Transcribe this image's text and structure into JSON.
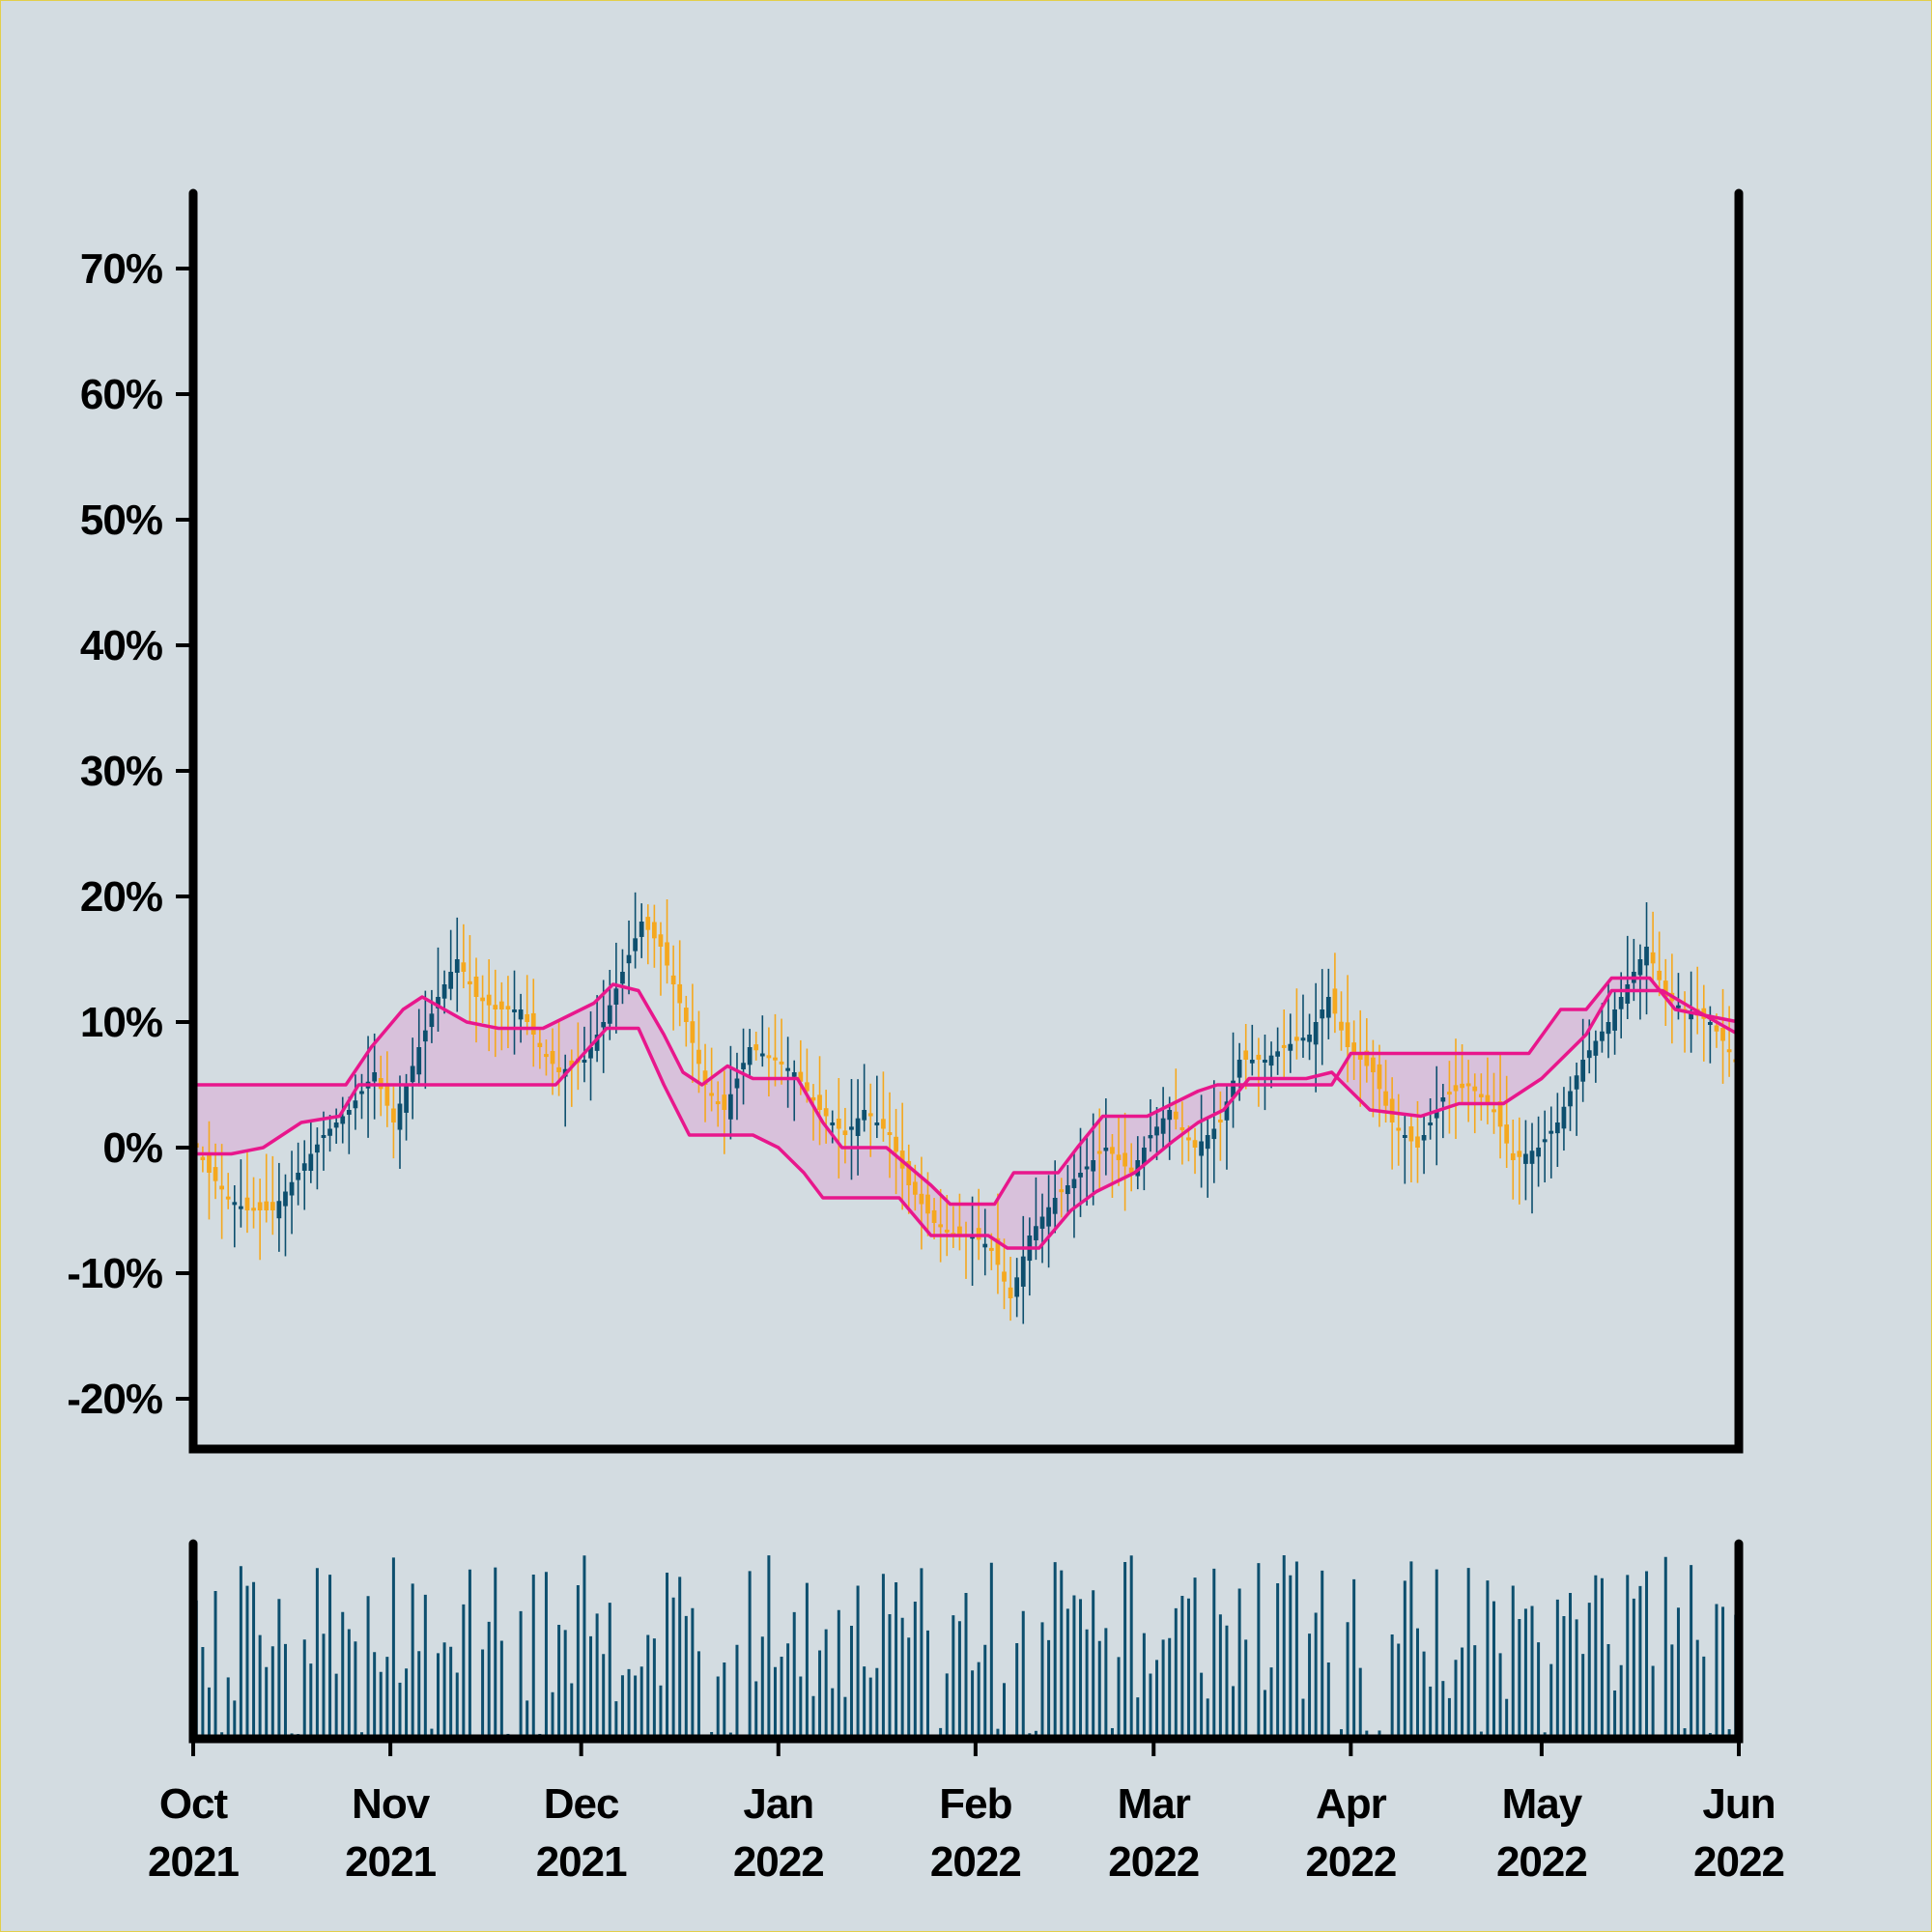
{
  "chart_data": {
    "type": "candlestick",
    "title": "",
    "xlabel": "",
    "ylabel": "",
    "x_range": [
      "2021-10-01",
      "2022-06-01"
    ],
    "y_range_percent": [
      -24,
      76
    ],
    "y_ticks": [
      "70%",
      "60%",
      "50%",
      "40%",
      "30%",
      "20%",
      "10%",
      "0%",
      "-10%",
      "-20%"
    ],
    "y_tick_values": [
      70,
      60,
      50,
      40,
      30,
      20,
      10,
      0,
      -10,
      -20
    ],
    "x_ticks": [
      {
        "date": "2021-10-01",
        "month": "Oct",
        "year": "2021"
      },
      {
        "date": "2021-11-01",
        "month": "Nov",
        "year": "2021"
      },
      {
        "date": "2021-12-01",
        "month": "Dec",
        "year": "2021"
      },
      {
        "date": "2022-01-01",
        "month": "Jan",
        "year": "2022"
      },
      {
        "date": "2022-02-01",
        "month": "Feb",
        "year": "2022"
      },
      {
        "date": "2022-03-01",
        "month": "Mar",
        "year": "2022"
      },
      {
        "date": "2022-04-01",
        "month": "Apr",
        "year": "2022"
      },
      {
        "date": "2022-05-01",
        "month": "May",
        "year": "2022"
      },
      {
        "date": "2022-06-01",
        "month": "Jun",
        "year": "2022"
      }
    ],
    "close_path": [
      [
        "2021-10-01",
        1
      ],
      [
        "2021-10-04",
        -2
      ],
      [
        "2021-10-07",
        -4
      ],
      [
        "2021-10-10",
        -5
      ],
      [
        "2021-10-14",
        -5
      ],
      [
        "2021-10-18",
        -2
      ],
      [
        "2021-10-22",
        1
      ],
      [
        "2021-10-26",
        3
      ],
      [
        "2021-10-30",
        6
      ],
      [
        "2021-11-02",
        2
      ],
      [
        "2021-11-06",
        8
      ],
      [
        "2021-11-09",
        12
      ],
      [
        "2021-11-12",
        15
      ],
      [
        "2021-11-15",
        12
      ],
      [
        "2021-11-18",
        11
      ],
      [
        "2021-11-22",
        11
      ],
      [
        "2021-11-25",
        8
      ],
      [
        "2021-11-28",
        6
      ],
      [
        "2021-12-02",
        7
      ],
      [
        "2021-12-05",
        10
      ],
      [
        "2021-12-08",
        14
      ],
      [
        "2021-12-11",
        18
      ],
      [
        "2021-12-14",
        16
      ],
      [
        "2021-12-18",
        10
      ],
      [
        "2021-12-21",
        5
      ],
      [
        "2021-12-24",
        3
      ],
      [
        "2021-12-28",
        8
      ],
      [
        "2022-01-01",
        7
      ],
      [
        "2022-01-04",
        6
      ],
      [
        "2022-01-08",
        3
      ],
      [
        "2022-01-12",
        1
      ],
      [
        "2022-01-15",
        3
      ],
      [
        "2022-01-19",
        1
      ],
      [
        "2022-01-22",
        -3
      ],
      [
        "2022-01-26",
        -6
      ],
      [
        "2022-01-29",
        -7
      ],
      [
        "2022-02-01",
        -7
      ],
      [
        "2022-02-04",
        -8
      ],
      [
        "2022-02-07",
        -12
      ],
      [
        "2022-02-10",
        -7
      ],
      [
        "2022-02-14",
        -4
      ],
      [
        "2022-02-18",
        -2
      ],
      [
        "2022-02-22",
        0
      ],
      [
        "2022-02-26",
        -2
      ],
      [
        "2022-03-01",
        1
      ],
      [
        "2022-03-04",
        3
      ],
      [
        "2022-03-08",
        0
      ],
      [
        "2022-03-12",
        2
      ],
      [
        "2022-03-15",
        7
      ],
      [
        "2022-03-19",
        7
      ],
      [
        "2022-03-22",
        8
      ],
      [
        "2022-03-26",
        9
      ],
      [
        "2022-03-29",
        12
      ],
      [
        "2022-04-01",
        8
      ],
      [
        "2022-04-05",
        6
      ],
      [
        "2022-04-08",
        2
      ],
      [
        "2022-04-12",
        0
      ],
      [
        "2022-04-16",
        4
      ],
      [
        "2022-04-20",
        5
      ],
      [
        "2022-04-24",
        3
      ],
      [
        "2022-04-27",
        -1
      ],
      [
        "2022-05-01",
        0
      ],
      [
        "2022-05-04",
        2
      ],
      [
        "2022-05-08",
        7
      ],
      [
        "2022-05-12",
        10
      ],
      [
        "2022-05-15",
        13
      ],
      [
        "2022-05-18",
        16
      ],
      [
        "2022-05-21",
        12
      ],
      [
        "2022-05-24",
        11
      ],
      [
        "2022-05-28",
        10
      ],
      [
        "2022-06-01",
        7
      ]
    ],
    "channel_upper": [
      [
        "2021-10-01",
        5
      ],
      [
        "2021-10-25",
        5
      ],
      [
        "2021-10-29",
        8
      ],
      [
        "2021-11-03",
        11
      ],
      [
        "2021-11-06",
        12
      ],
      [
        "2021-11-13",
        10
      ],
      [
        "2021-11-18",
        9.5
      ],
      [
        "2021-11-25",
        9.5
      ],
      [
        "2021-11-29",
        10.5
      ],
      [
        "2021-12-03",
        11.5
      ],
      [
        "2021-12-06",
        13
      ],
      [
        "2021-12-10",
        12.5
      ],
      [
        "2021-12-14",
        9
      ],
      [
        "2021-12-17",
        6
      ],
      [
        "2021-12-20",
        5
      ],
      [
        "2021-12-24",
        6.5
      ],
      [
        "2021-12-28",
        5.5
      ],
      [
        "2022-01-04",
        5.5
      ],
      [
        "2022-01-08",
        2
      ],
      [
        "2022-01-11",
        0
      ],
      [
        "2022-01-18",
        0
      ],
      [
        "2022-01-25",
        -3
      ],
      [
        "2022-01-28",
        -4.5
      ],
      [
        "2022-02-04",
        -4.5
      ],
      [
        "2022-02-07",
        -2
      ],
      [
        "2022-02-14",
        -2
      ],
      [
        "2022-02-17",
        0
      ],
      [
        "2022-02-21",
        2.5
      ],
      [
        "2022-02-28",
        2.5
      ],
      [
        "2022-03-04",
        3.5
      ],
      [
        "2022-03-08",
        4.5
      ],
      [
        "2022-03-11",
        5
      ],
      [
        "2022-03-29",
        5
      ],
      [
        "2022-04-01",
        7.5
      ],
      [
        "2022-04-29",
        7.5
      ],
      [
        "2022-05-04",
        11
      ],
      [
        "2022-05-08",
        11
      ],
      [
        "2022-05-12",
        13.5
      ],
      [
        "2022-05-18",
        13.5
      ],
      [
        "2022-05-22",
        11
      ],
      [
        "2022-06-01",
        10
      ]
    ],
    "channel_lower": [
      [
        "2021-10-01",
        -0.5
      ],
      [
        "2021-10-07",
        -0.5
      ],
      [
        "2021-10-12",
        0
      ],
      [
        "2021-10-18",
        2
      ],
      [
        "2021-10-24",
        2.5
      ],
      [
        "2021-10-27",
        5
      ],
      [
        "2021-11-20",
        5
      ],
      [
        "2021-11-27",
        5
      ],
      [
        "2021-12-05",
        9.5
      ],
      [
        "2021-12-10",
        9.5
      ],
      [
        "2021-12-14",
        5
      ],
      [
        "2021-12-18",
        1
      ],
      [
        "2021-12-28",
        1
      ],
      [
        "2022-01-01",
        0
      ],
      [
        "2022-01-05",
        -2
      ],
      [
        "2022-01-08",
        -4
      ],
      [
        "2022-01-20",
        -4
      ],
      [
        "2022-01-25",
        -7
      ],
      [
        "2022-02-03",
        -7
      ],
      [
        "2022-02-06",
        -8
      ],
      [
        "2022-02-11",
        -8
      ],
      [
        "2022-02-16",
        -5
      ],
      [
        "2022-02-20",
        -3.5
      ],
      [
        "2022-02-26",
        -2
      ],
      [
        "2022-03-04",
        0.5
      ],
      [
        "2022-03-08",
        2
      ],
      [
        "2022-03-12",
        3
      ],
      [
        "2022-03-16",
        5.5
      ],
      [
        "2022-03-25",
        5.5
      ],
      [
        "2022-03-29",
        6
      ],
      [
        "2022-04-04",
        3
      ],
      [
        "2022-04-12",
        2.5
      ],
      [
        "2022-04-18",
        3.5
      ],
      [
        "2022-04-25",
        3.5
      ],
      [
        "2022-05-01",
        5.5
      ],
      [
        "2022-05-08",
        9
      ],
      [
        "2022-05-12",
        12.5
      ],
      [
        "2022-05-20",
        12.5
      ],
      [
        "2022-05-25",
        11
      ],
      [
        "2022-06-01",
        9
      ]
    ],
    "volume_range": [
      0,
      100
    ],
    "colors": {
      "background": "#d3dce1",
      "frame_border": "#e2cf4a",
      "up_candle": "#0d4f6e",
      "down_candle": "#f5a81e",
      "channel_line": "#e8178c",
      "channel_fill": "#d9b8d8",
      "volume_bar": "#0d4f6e",
      "axis": "#000000"
    }
  }
}
